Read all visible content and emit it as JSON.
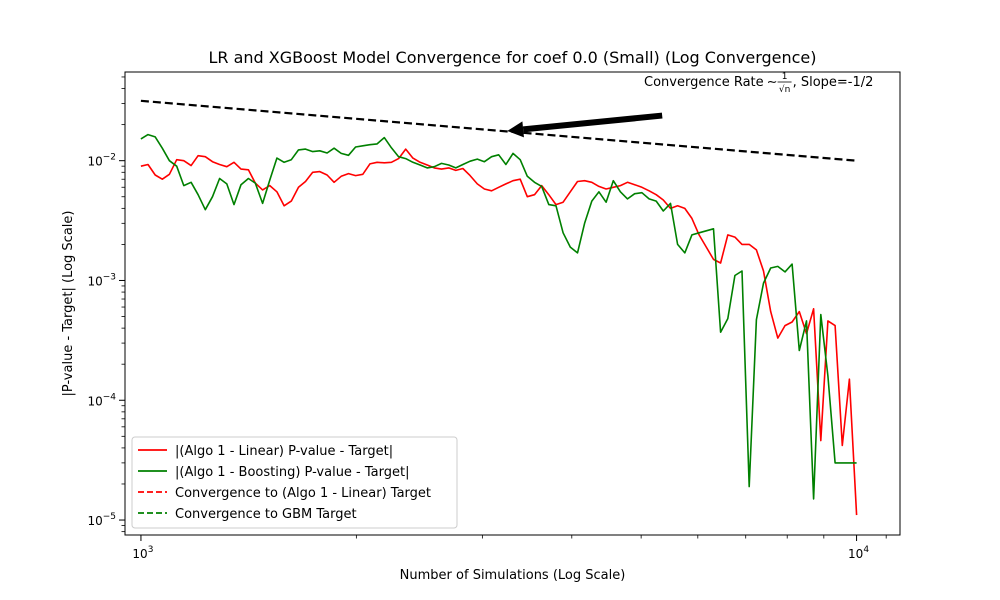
{
  "chart_data": {
    "type": "line",
    "title": "LR and XGBoost Model Convergence for coef 0.0 (Small) (Log Convergence)",
    "xlabel": "Number of Simulations (Log Scale)",
    "ylabel": "|P-value - Target| (Log Scale)",
    "xscale": "log",
    "yscale": "log",
    "xlim": [
      950,
      11500
    ],
    "ylim": [
      7.5e-06,
      0.055
    ],
    "x_ticks": [
      {
        "value": 1000,
        "base": "10",
        "exp": "3"
      },
      {
        "value": 10000,
        "base": "10",
        "exp": "4"
      }
    ],
    "y_ticks": [
      {
        "value": 1e-05,
        "base": "10",
        "exp": "−5"
      },
      {
        "value": 0.0001,
        "base": "10",
        "exp": "−4"
      },
      {
        "value": 0.001,
        "base": "10",
        "exp": "−3"
      },
      {
        "value": 0.01,
        "base": "10",
        "exp": "−2"
      }
    ],
    "grid": false,
    "legend_position": "lower-left",
    "legend": [
      {
        "label": "|(Algo 1 - Linear) P-value - Target|",
        "color": "#ff0000",
        "style": "solid"
      },
      {
        "label": "|(Algo 1 - Boosting) P-value - Target|",
        "color": "#008000",
        "style": "solid"
      },
      {
        "label": "Convergence to (Algo 1 - Linear) Target",
        "color": "#ff0000",
        "style": "dashed"
      },
      {
        "label": "Convergence to GBM Target",
        "color": "#008000",
        "style": "dashed"
      }
    ],
    "series": [
      {
        "name": "|(Algo 1 - Linear) P-value - Target|",
        "color": "#ff0000",
        "style": "solid",
        "x": [
          1000,
          1023,
          1047,
          1071,
          1096,
          1122,
          1148,
          1175,
          1202,
          1230,
          1259,
          1288,
          1318,
          1349,
          1380,
          1413,
          1445,
          1479,
          1514,
          1549,
          1585,
          1622,
          1660,
          1698,
          1738,
          1778,
          1820,
          1862,
          1905,
          1950,
          1995,
          2042,
          2089,
          2138,
          2188,
          2239,
          2291,
          2344,
          2399,
          2455,
          2512,
          2570,
          2630,
          2692,
          2754,
          2818,
          2884,
          2951,
          3020,
          3090,
          3162,
          3236,
          3311,
          3388,
          3467,
          3548,
          3631,
          3715,
          3802,
          3890,
          3981,
          4074,
          4169,
          4266,
          4365,
          4467,
          4571,
          4677,
          4786,
          4898,
          5012,
          5129,
          5248,
          5370,
          5495,
          5623,
          5754,
          5888,
          6026,
          6166,
          6310,
          6457,
          6607,
          6761,
          6918,
          7079,
          7244,
          7413,
          7586,
          7762,
          7943,
          8128,
          8318,
          8511,
          8710,
          8913,
          9120,
          9333,
          9550,
          9772,
          10000
        ],
        "values": [
          0.009,
          0.0093,
          0.0076,
          0.007,
          0.0077,
          0.0102,
          0.01,
          0.0091,
          0.011,
          0.0108,
          0.0098,
          0.0093,
          0.0089,
          0.0097,
          0.0085,
          0.0084,
          0.0065,
          0.0057,
          0.0062,
          0.0055,
          0.0042,
          0.0046,
          0.006,
          0.0067,
          0.008,
          0.0081,
          0.0076,
          0.0066,
          0.0074,
          0.0078,
          0.0075,
          0.0077,
          0.0094,
          0.0097,
          0.0096,
          0.0097,
          0.0104,
          0.0125,
          0.0105,
          0.0097,
          0.0092,
          0.0087,
          0.0085,
          0.0087,
          0.0083,
          0.0086,
          0.0075,
          0.0064,
          0.0058,
          0.0056,
          0.006,
          0.0064,
          0.0068,
          0.007,
          0.005,
          0.0052,
          0.0062,
          0.0052,
          0.0043,
          0.0045,
          0.0055,
          0.0067,
          0.0068,
          0.0066,
          0.0061,
          0.0058,
          0.006,
          0.0062,
          0.0066,
          0.0063,
          0.006,
          0.0056,
          0.0052,
          0.0047,
          0.004,
          0.0042,
          0.004,
          0.0033,
          0.0024,
          0.0019,
          0.0015,
          0.0014,
          0.0024,
          0.0023,
          0.002,
          0.002,
          0.0018,
          0.0012,
          0.00055,
          0.00033,
          0.00042,
          0.00045,
          0.00055,
          0.00036,
          0.00058,
          4.6e-05,
          0.00046,
          0.00042,
          4.2e-05,
          0.00015,
          1.1e-05
        ]
      },
      {
        "name": "|(Algo 1 - Boosting) P-value - Target|",
        "color": "#008000",
        "style": "solid",
        "x": [
          1000,
          1023,
          1047,
          1071,
          1096,
          1122,
          1148,
          1175,
          1202,
          1230,
          1259,
          1288,
          1318,
          1349,
          1380,
          1413,
          1445,
          1479,
          1514,
          1549,
          1585,
          1622,
          1660,
          1698,
          1738,
          1778,
          1820,
          1862,
          1905,
          1950,
          1995,
          2042,
          2089,
          2138,
          2188,
          2239,
          2291,
          2344,
          2399,
          2455,
          2512,
          2570,
          2630,
          2692,
          2754,
          2818,
          2884,
          2951,
          3020,
          3090,
          3162,
          3236,
          3311,
          3388,
          3467,
          3548,
          3631,
          3715,
          3802,
          3890,
          3981,
          4074,
          4169,
          4266,
          4365,
          4467,
          4571,
          4677,
          4786,
          4898,
          5012,
          5129,
          5248,
          5370,
          5495,
          5623,
          5754,
          5888,
          6026,
          6166,
          6310,
          6457,
          6607,
          6761,
          6918,
          7079,
          7244,
          7413,
          7586,
          7762,
          7943,
          8128,
          8318,
          8511,
          8710,
          8913,
          9120,
          9333,
          9550,
          9772,
          10000
        ],
        "values": [
          0.0152,
          0.0165,
          0.0158,
          0.0127,
          0.01,
          0.009,
          0.0062,
          0.0066,
          0.0052,
          0.0039,
          0.005,
          0.0071,
          0.0064,
          0.0043,
          0.0063,
          0.0071,
          0.0065,
          0.0044,
          0.0069,
          0.0105,
          0.0097,
          0.0102,
          0.0123,
          0.0125,
          0.0119,
          0.0121,
          0.0116,
          0.0127,
          0.0115,
          0.0111,
          0.013,
          0.0133,
          0.0136,
          0.0138,
          0.0156,
          0.0128,
          0.0108,
          0.0104,
          0.0097,
          0.0092,
          0.0087,
          0.0089,
          0.0095,
          0.0092,
          0.0087,
          0.0093,
          0.0099,
          0.0103,
          0.0098,
          0.0108,
          0.0112,
          0.0093,
          0.0115,
          0.0102,
          0.0074,
          0.0066,
          0.0061,
          0.0043,
          0.0042,
          0.0025,
          0.0019,
          0.0017,
          0.003,
          0.0046,
          0.0055,
          0.0045,
          0.0068,
          0.0055,
          0.0048,
          0.0053,
          0.0054,
          0.0048,
          0.0046,
          0.0038,
          0.0044,
          0.002,
          0.0017,
          0.0024,
          0.0025,
          0.0026,
          0.0027,
          0.00037,
          0.00048,
          0.0011,
          0.0012,
          1.9e-05,
          0.00047,
          0.00095,
          0.00127,
          0.00131,
          0.00118,
          0.00137,
          0.00026,
          0.00046,
          1.5e-05,
          0.00052,
          0.00016,
          3e-05,
          3e-05,
          3e-05,
          3e-05
        ]
      },
      {
        "name": "",
        "color": "#000000",
        "style": "dashed",
        "x": [
          1000,
          10000
        ],
        "values": [
          0.0316,
          0.01
        ]
      }
    ],
    "annotation": {
      "text_before": "Convergence Rate",
      "symbol": "∼",
      "frac_num": "1",
      "frac_den": "√n",
      "text_after": ", Slope=-1/2",
      "arrow_tip": {
        "x": 3250,
        "y": 0.0177
      },
      "arrow_tail": {
        "x": 5350,
        "y": 0.0238
      }
    }
  }
}
